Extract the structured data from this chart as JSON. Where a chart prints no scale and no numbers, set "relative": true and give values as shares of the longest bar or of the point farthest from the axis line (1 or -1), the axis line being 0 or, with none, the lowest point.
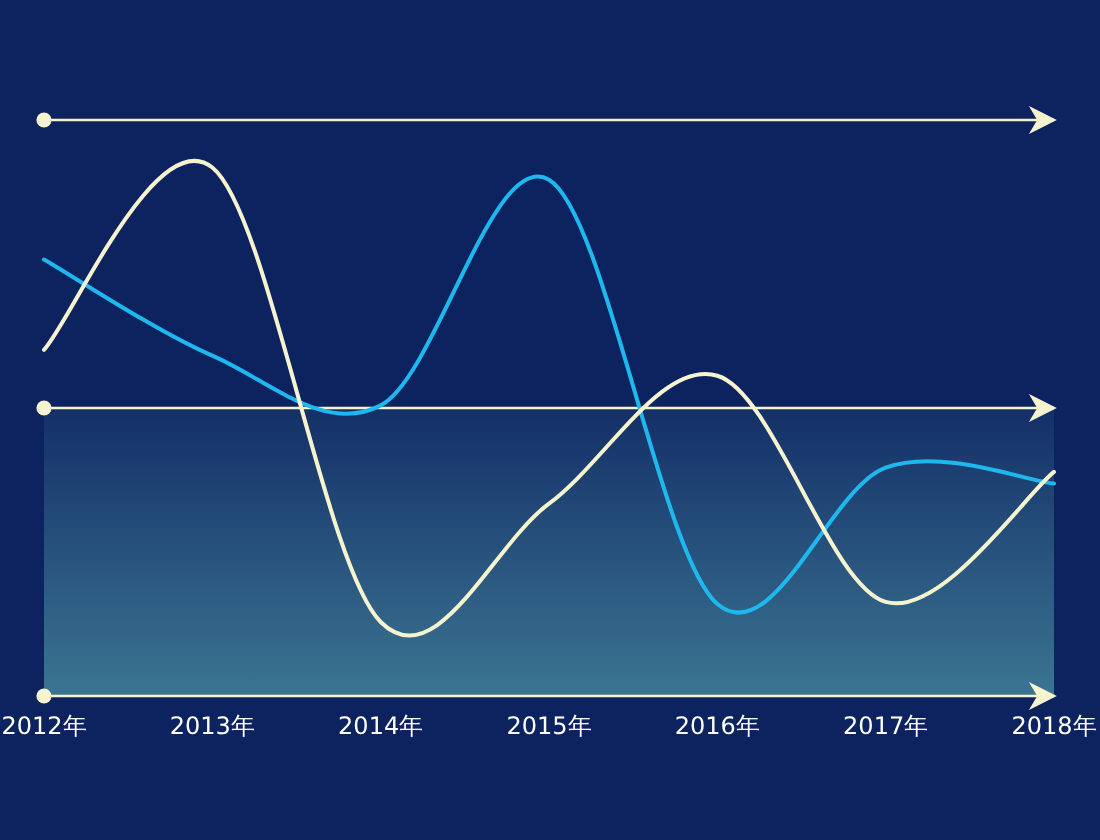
{
  "chart_data": {
    "type": "line",
    "relative": true,
    "categories": [
      "2012年",
      "2013年",
      "2014年",
      "2015年",
      "2016年",
      "2017年",
      "2018年"
    ],
    "series": [
      {
        "color": "#1fb8ee",
        "values": [
          0.826,
          0.644,
          0.55,
          0.977,
          0.174,
          0.432,
          0.402
        ]
      },
      {
        "color": "#f6f4cf",
        "values": [
          0.655,
          1.0,
          0.14,
          0.364,
          0.606,
          0.178,
          0.424
        ]
      }
    ],
    "ref_lines": [
      {
        "axis": "y",
        "value": 1.09,
        "color": "#f6f4cf"
      },
      {
        "axis": "y",
        "value": 0.545,
        "color": "#f6f4cf"
      }
    ],
    "bands": [
      {
        "axis": "y",
        "from": 0,
        "to": 0.545,
        "color": "#3b7592"
      }
    ]
  }
}
